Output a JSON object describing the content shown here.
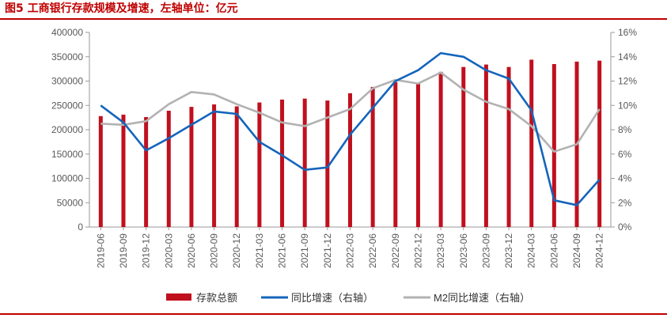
{
  "figure": {
    "title": "图5 工商银行存款规模及增速，左轴单位：亿元"
  },
  "colors": {
    "title": "#c00000",
    "bars": "#c0101e",
    "yoy_line": "#1465bb",
    "m2_line": "#b2b2b2",
    "axis": "#9a9a9a",
    "text": "#595959"
  },
  "chart_data": {
    "type": "bar",
    "title": "工商银行存款规模及增速，左轴单位：亿元",
    "categories": [
      "2019-06",
      "2019-09",
      "2019-12",
      "2020-03",
      "2020-06",
      "2020-09",
      "2020-12",
      "2021-03",
      "2021-06",
      "2021-09",
      "2021-12",
      "2022-03",
      "2022-06",
      "2022-09",
      "2022-12",
      "2023-03",
      "2023-06",
      "2023-09",
      "2023-12",
      "2024-03",
      "2024-06",
      "2024-09",
      "2024-12"
    ],
    "left_axis": {
      "ylim": [
        0,
        400000
      ],
      "ticks": [
        0,
        50000,
        100000,
        150000,
        200000,
        250000,
        300000,
        350000,
        400000
      ],
      "tick_labels": [
        "0",
        "50000",
        "100000",
        "150000",
        "200000",
        "250000",
        "300000",
        "350000",
        "400000"
      ]
    },
    "right_axis": {
      "ylim": [
        0,
        16
      ],
      "ticks": [
        0,
        2,
        4,
        6,
        8,
        10,
        12,
        14,
        16
      ],
      "tick_labels": [
        "0%",
        "2%",
        "4%",
        "6%",
        "8%",
        "10%",
        "12%",
        "14%",
        "16%"
      ]
    },
    "series": [
      {
        "name": "存款总额",
        "type": "bar",
        "axis": "left",
        "values": [
          228000,
          231000,
          226000,
          239000,
          247000,
          252000,
          248000,
          256000,
          262000,
          264000,
          260000,
          275000,
          288000,
          298000,
          296000,
          319000,
          329000,
          334000,
          329000,
          344000,
          335000,
          340000,
          342000
        ]
      },
      {
        "name": "同比增速（右轴）",
        "type": "line",
        "axis": "right",
        "values": [
          10.0,
          8.6,
          6.3,
          7.3,
          8.4,
          9.5,
          9.3,
          7.0,
          5.9,
          4.7,
          4.9,
          7.6,
          9.8,
          12.0,
          12.9,
          14.3,
          14.0,
          12.9,
          12.2,
          9.6,
          2.2,
          1.8,
          3.9
        ]
      },
      {
        "name": "M2同比增速（右轴）",
        "type": "line",
        "axis": "right",
        "values": [
          8.5,
          8.4,
          8.7,
          10.1,
          11.1,
          10.9,
          10.1,
          9.4,
          8.6,
          8.3,
          9.0,
          9.7,
          11.4,
          12.1,
          11.8,
          12.7,
          11.3,
          10.3,
          9.7,
          8.3,
          6.2,
          6.8,
          9.7
        ]
      }
    ],
    "legend": {
      "position": "bottom",
      "items": [
        "存款总额",
        "同比增速（右轴）",
        "M2同比增速（右轴）"
      ]
    }
  }
}
